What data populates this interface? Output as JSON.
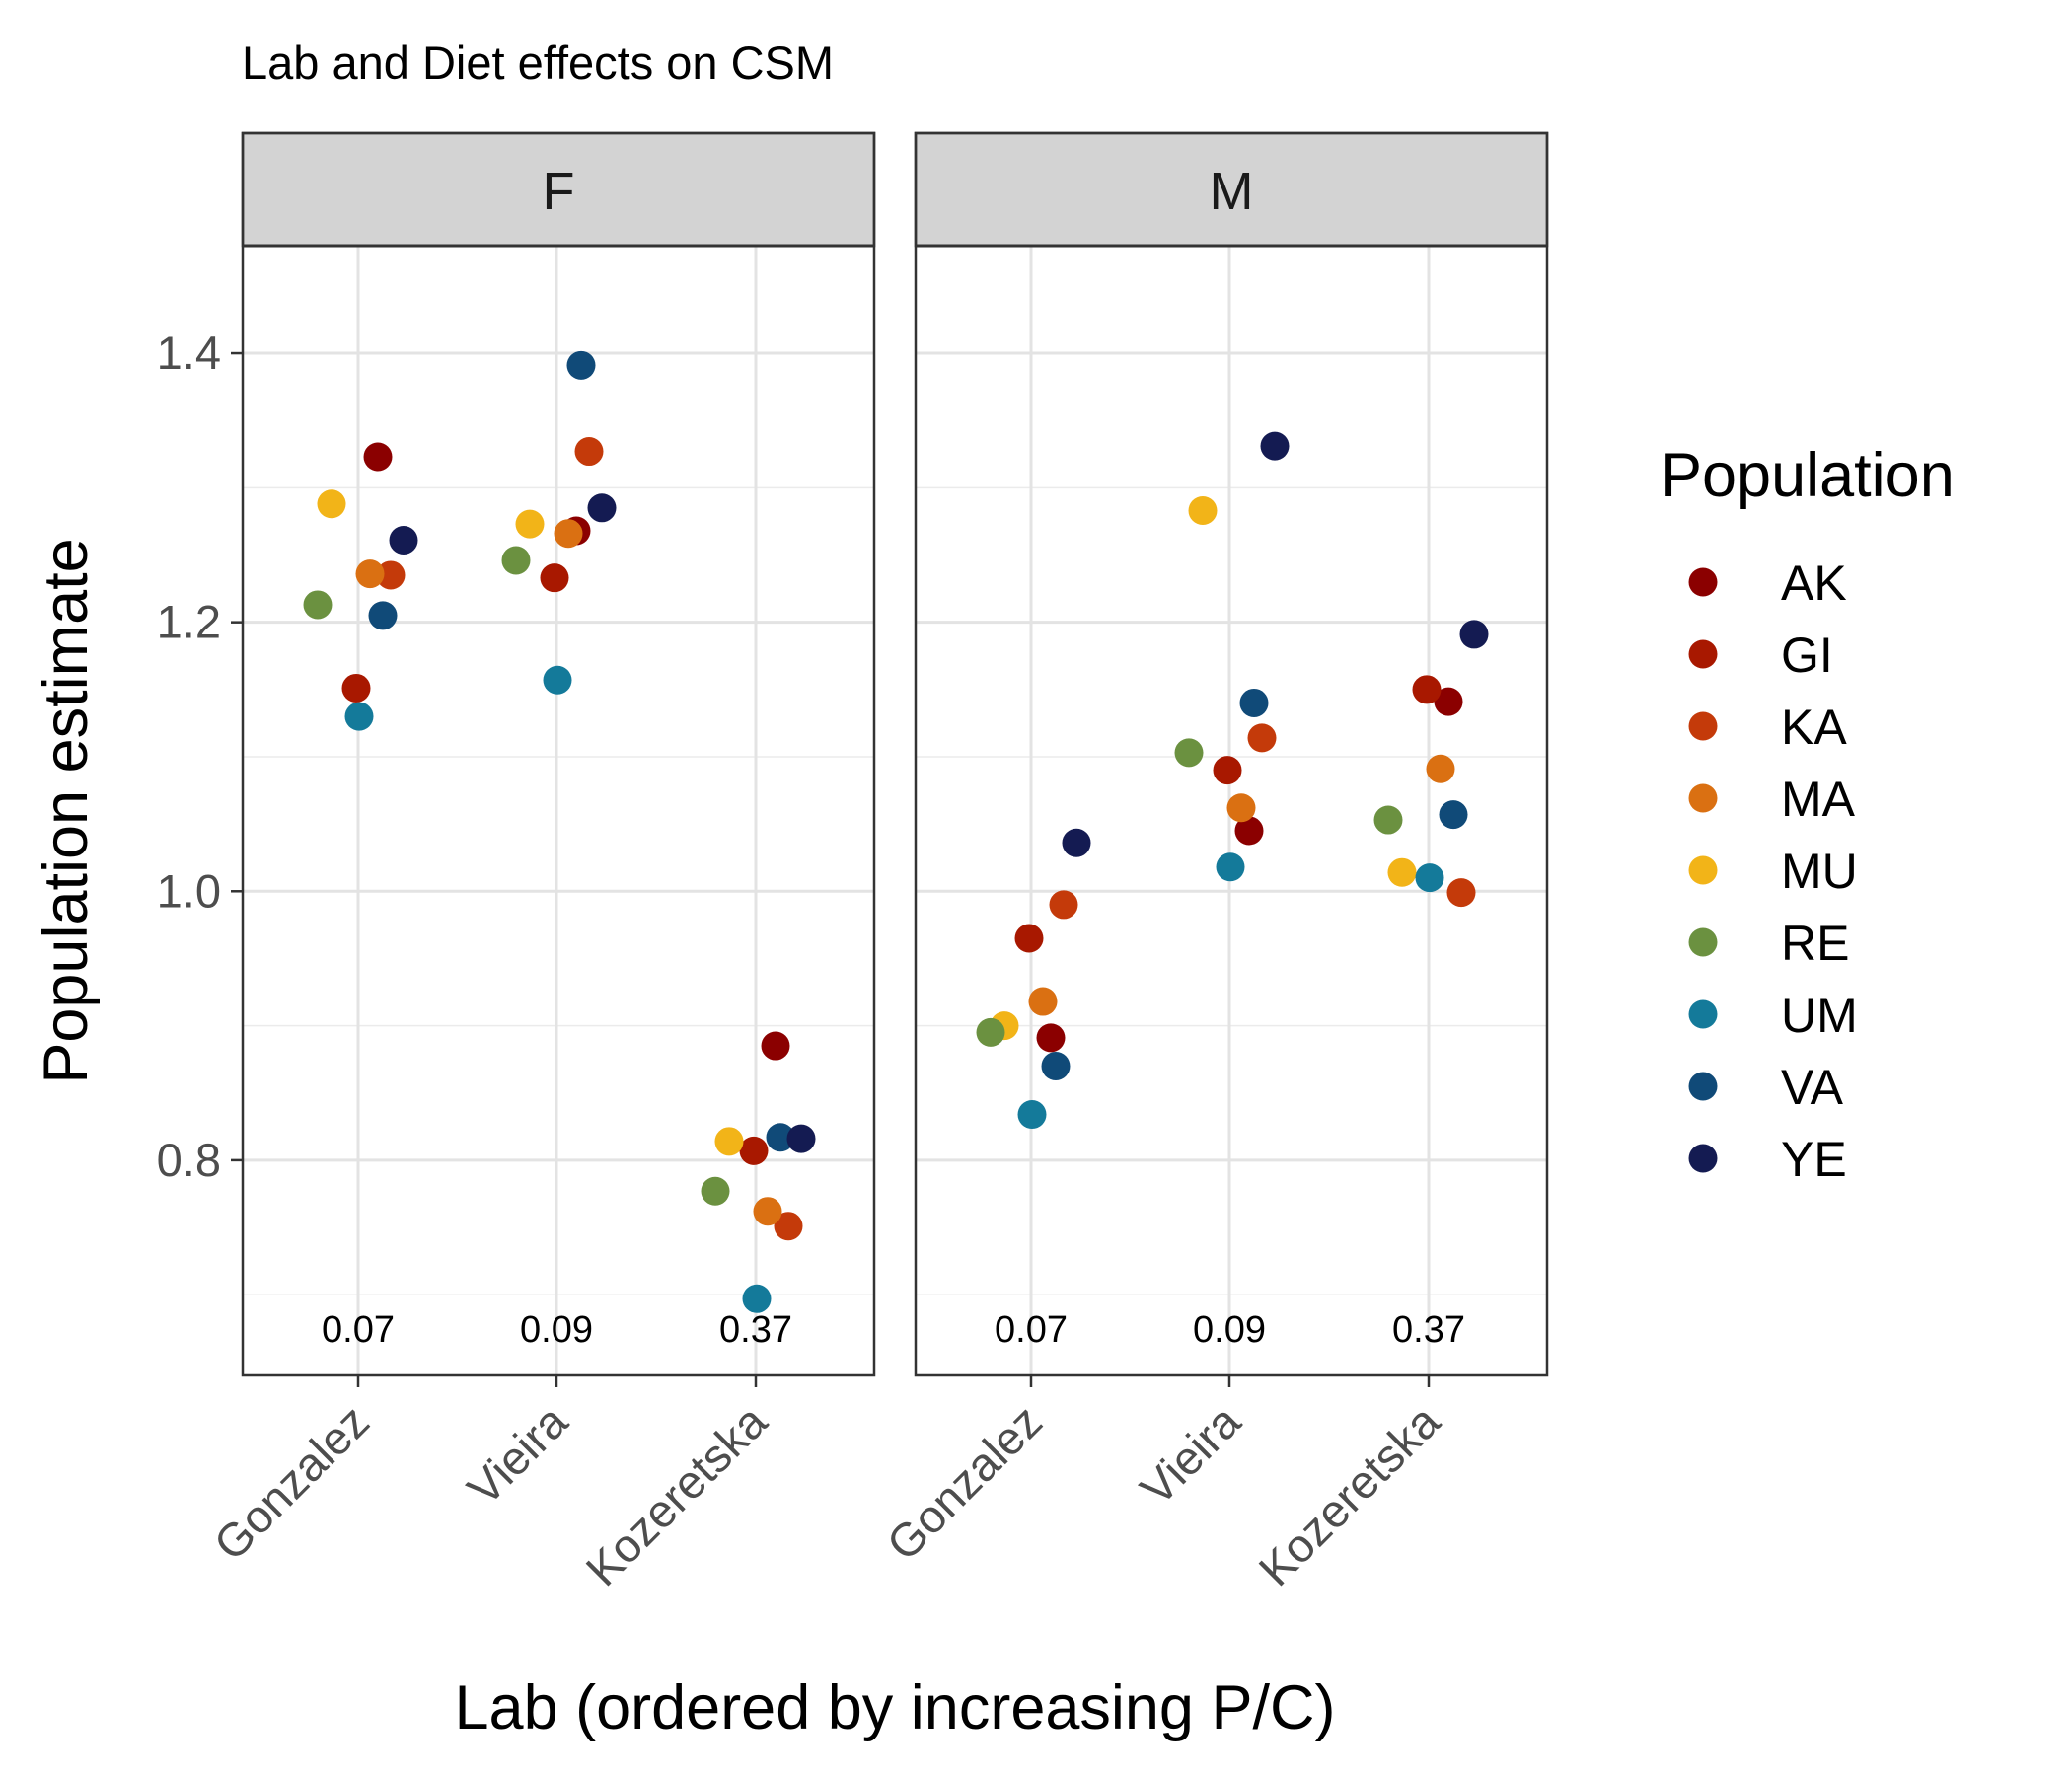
{
  "chart_data": {
    "type": "scatter",
    "title": "Lab and Diet effects on CSM",
    "xlabel": "Lab (ordered by increasing P/C)",
    "ylabel": "Population estimate",
    "ylim": [
      0.64,
      1.48
    ],
    "yticks": [
      "0.8",
      "1.0",
      "1.2",
      "1.4"
    ],
    "categories": [
      "Gonzalez",
      "Vieira",
      "Kozeretska"
    ],
    "pc_values": [
      "0.07",
      "0.09",
      "0.37"
    ],
    "facets": [
      "F",
      "M"
    ],
    "grid": true,
    "legend": {
      "title": "Population",
      "position": "right",
      "entries": [
        {
          "name": "AK",
          "color": "#8B0000"
        },
        {
          "name": "GI",
          "color": "#A81800"
        },
        {
          "name": "KA",
          "color": "#C43A0A"
        },
        {
          "name": "MA",
          "color": "#DA7012"
        },
        {
          "name": "MU",
          "color": "#F2B418"
        },
        {
          "name": "RE",
          "color": "#6B9140"
        },
        {
          "name": "UM",
          "color": "#147A9A"
        },
        {
          "name": "VA",
          "color": "#104A78"
        },
        {
          "name": "YE",
          "color": "#141B52"
        }
      ]
    },
    "points": {
      "F": {
        "Gonzalez": {
          "AK": 1.323,
          "GI": 1.151,
          "KA": 1.235,
          "MA": 1.236,
          "MU": 1.288,
          "RE": 1.213,
          "UM": 1.13,
          "VA": 1.205,
          "YE": 1.261
        },
        "Vieira": {
          "AK": 1.268,
          "GI": 1.233,
          "KA": 1.327,
          "MA": 1.266,
          "MU": 1.273,
          "RE": 1.246,
          "UM": 1.157,
          "VA": 1.391,
          "YE": 1.285
        },
        "Kozeretska": {
          "AK": 0.885,
          "GI": 0.807,
          "KA": 0.751,
          "MA": 0.762,
          "MU": 0.814,
          "RE": 0.777,
          "UM": 0.697,
          "VA": 0.817,
          "YE": 0.816
        }
      },
      "M": {
        "Gonzalez": {
          "AK": 0.891,
          "GI": 0.965,
          "KA": 0.99,
          "MA": 0.918,
          "MU": 0.9,
          "RE": 0.895,
          "UM": 0.834,
          "VA": 0.87,
          "YE": 1.036
        },
        "Vieira": {
          "AK": 1.045,
          "GI": 1.09,
          "KA": 1.114,
          "MA": 1.062,
          "MU": 1.283,
          "RE": 1.103,
          "UM": 1.018,
          "VA": 1.14,
          "YE": 1.331
        },
        "Kozeretska": {
          "AK": 1.141,
          "GI": 1.15,
          "KA": 0.999,
          "MA": 1.091,
          "MU": 1.014,
          "RE": 1.053,
          "UM": 1.01,
          "VA": 1.057,
          "YE": 1.191
        }
      }
    }
  }
}
